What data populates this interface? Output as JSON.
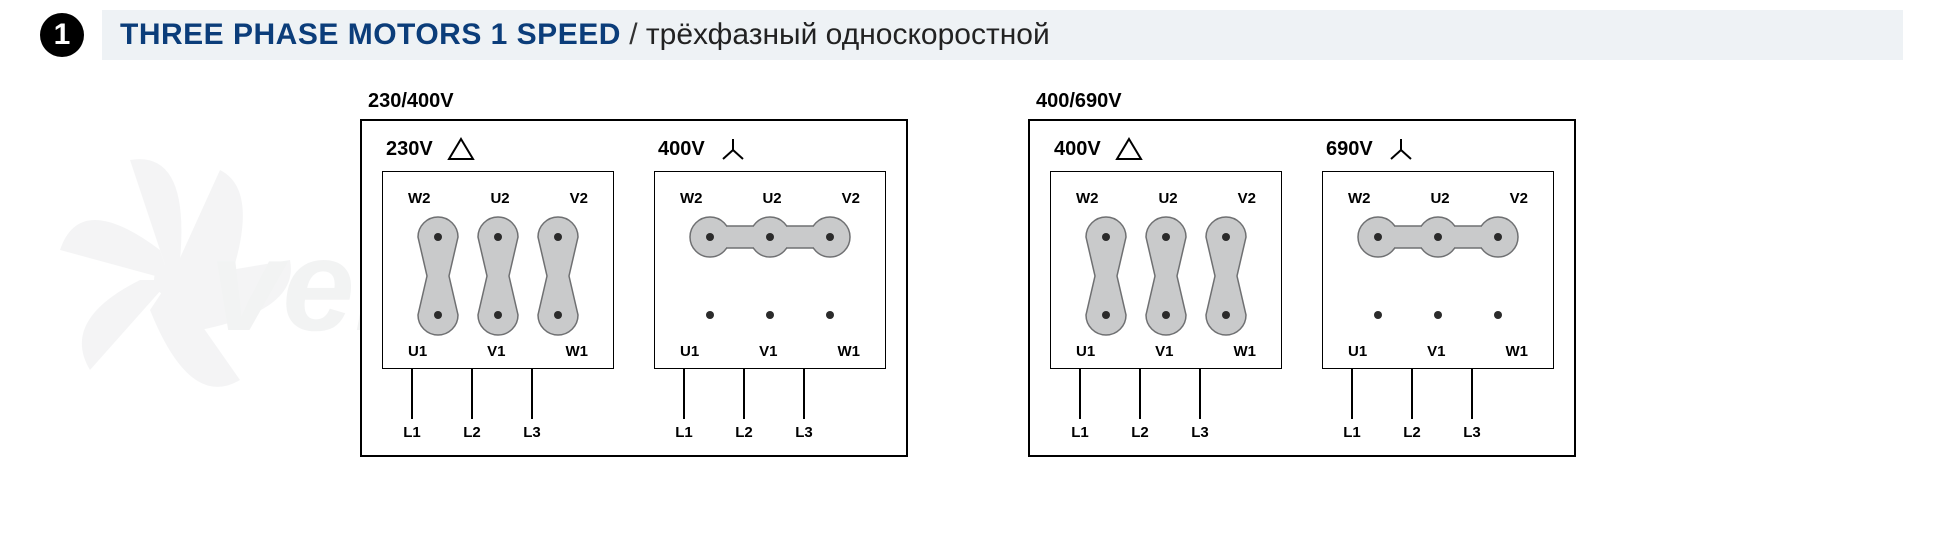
{
  "header": {
    "number": "1",
    "title_en": "THREE PHASE MOTORS 1 SPEED",
    "separator": " / ",
    "title_ru": "трёхфазный односкоростной"
  },
  "colors": {
    "title_blue": "#0b3d7a",
    "title_bg": "#eef2f5",
    "shape_fill": "#c9cacb",
    "shape_stroke": "#6f7072",
    "terminal_dot": "#2b2b2b",
    "border": "#000000"
  },
  "watermark_text": "venrel",
  "diagram_style": {
    "terminal_radius": 20,
    "dot_radius": 4,
    "spacing": 60,
    "label_fontsize": 15,
    "header_fontsize": 20
  },
  "groups": [
    {
      "group_label": "230/400V",
      "panels": [
        {
          "voltage": "230V",
          "connection": "delta",
          "top_terminals": [
            "W2",
            "U2",
            "V2"
          ],
          "bottom_terminals": [
            "U1",
            "V1",
            "W1"
          ],
          "line_labels": [
            "L1",
            "L2",
            "L3"
          ]
        },
        {
          "voltage": "400V",
          "connection": "star",
          "top_terminals": [
            "W2",
            "U2",
            "V2"
          ],
          "bottom_terminals": [
            "U1",
            "V1",
            "W1"
          ],
          "line_labels": [
            "L1",
            "L2",
            "L3"
          ]
        }
      ]
    },
    {
      "group_label": "400/690V",
      "panels": [
        {
          "voltage": "400V",
          "connection": "delta",
          "top_terminals": [
            "W2",
            "U2",
            "V2"
          ],
          "bottom_terminals": [
            "U1",
            "V1",
            "W1"
          ],
          "line_labels": [
            "L1",
            "L2",
            "L3"
          ]
        },
        {
          "voltage": "690V",
          "connection": "star",
          "top_terminals": [
            "W2",
            "U2",
            "V2"
          ],
          "bottom_terminals": [
            "U1",
            "V1",
            "W1"
          ],
          "line_labels": [
            "L1",
            "L2",
            "L3"
          ]
        }
      ]
    }
  ]
}
